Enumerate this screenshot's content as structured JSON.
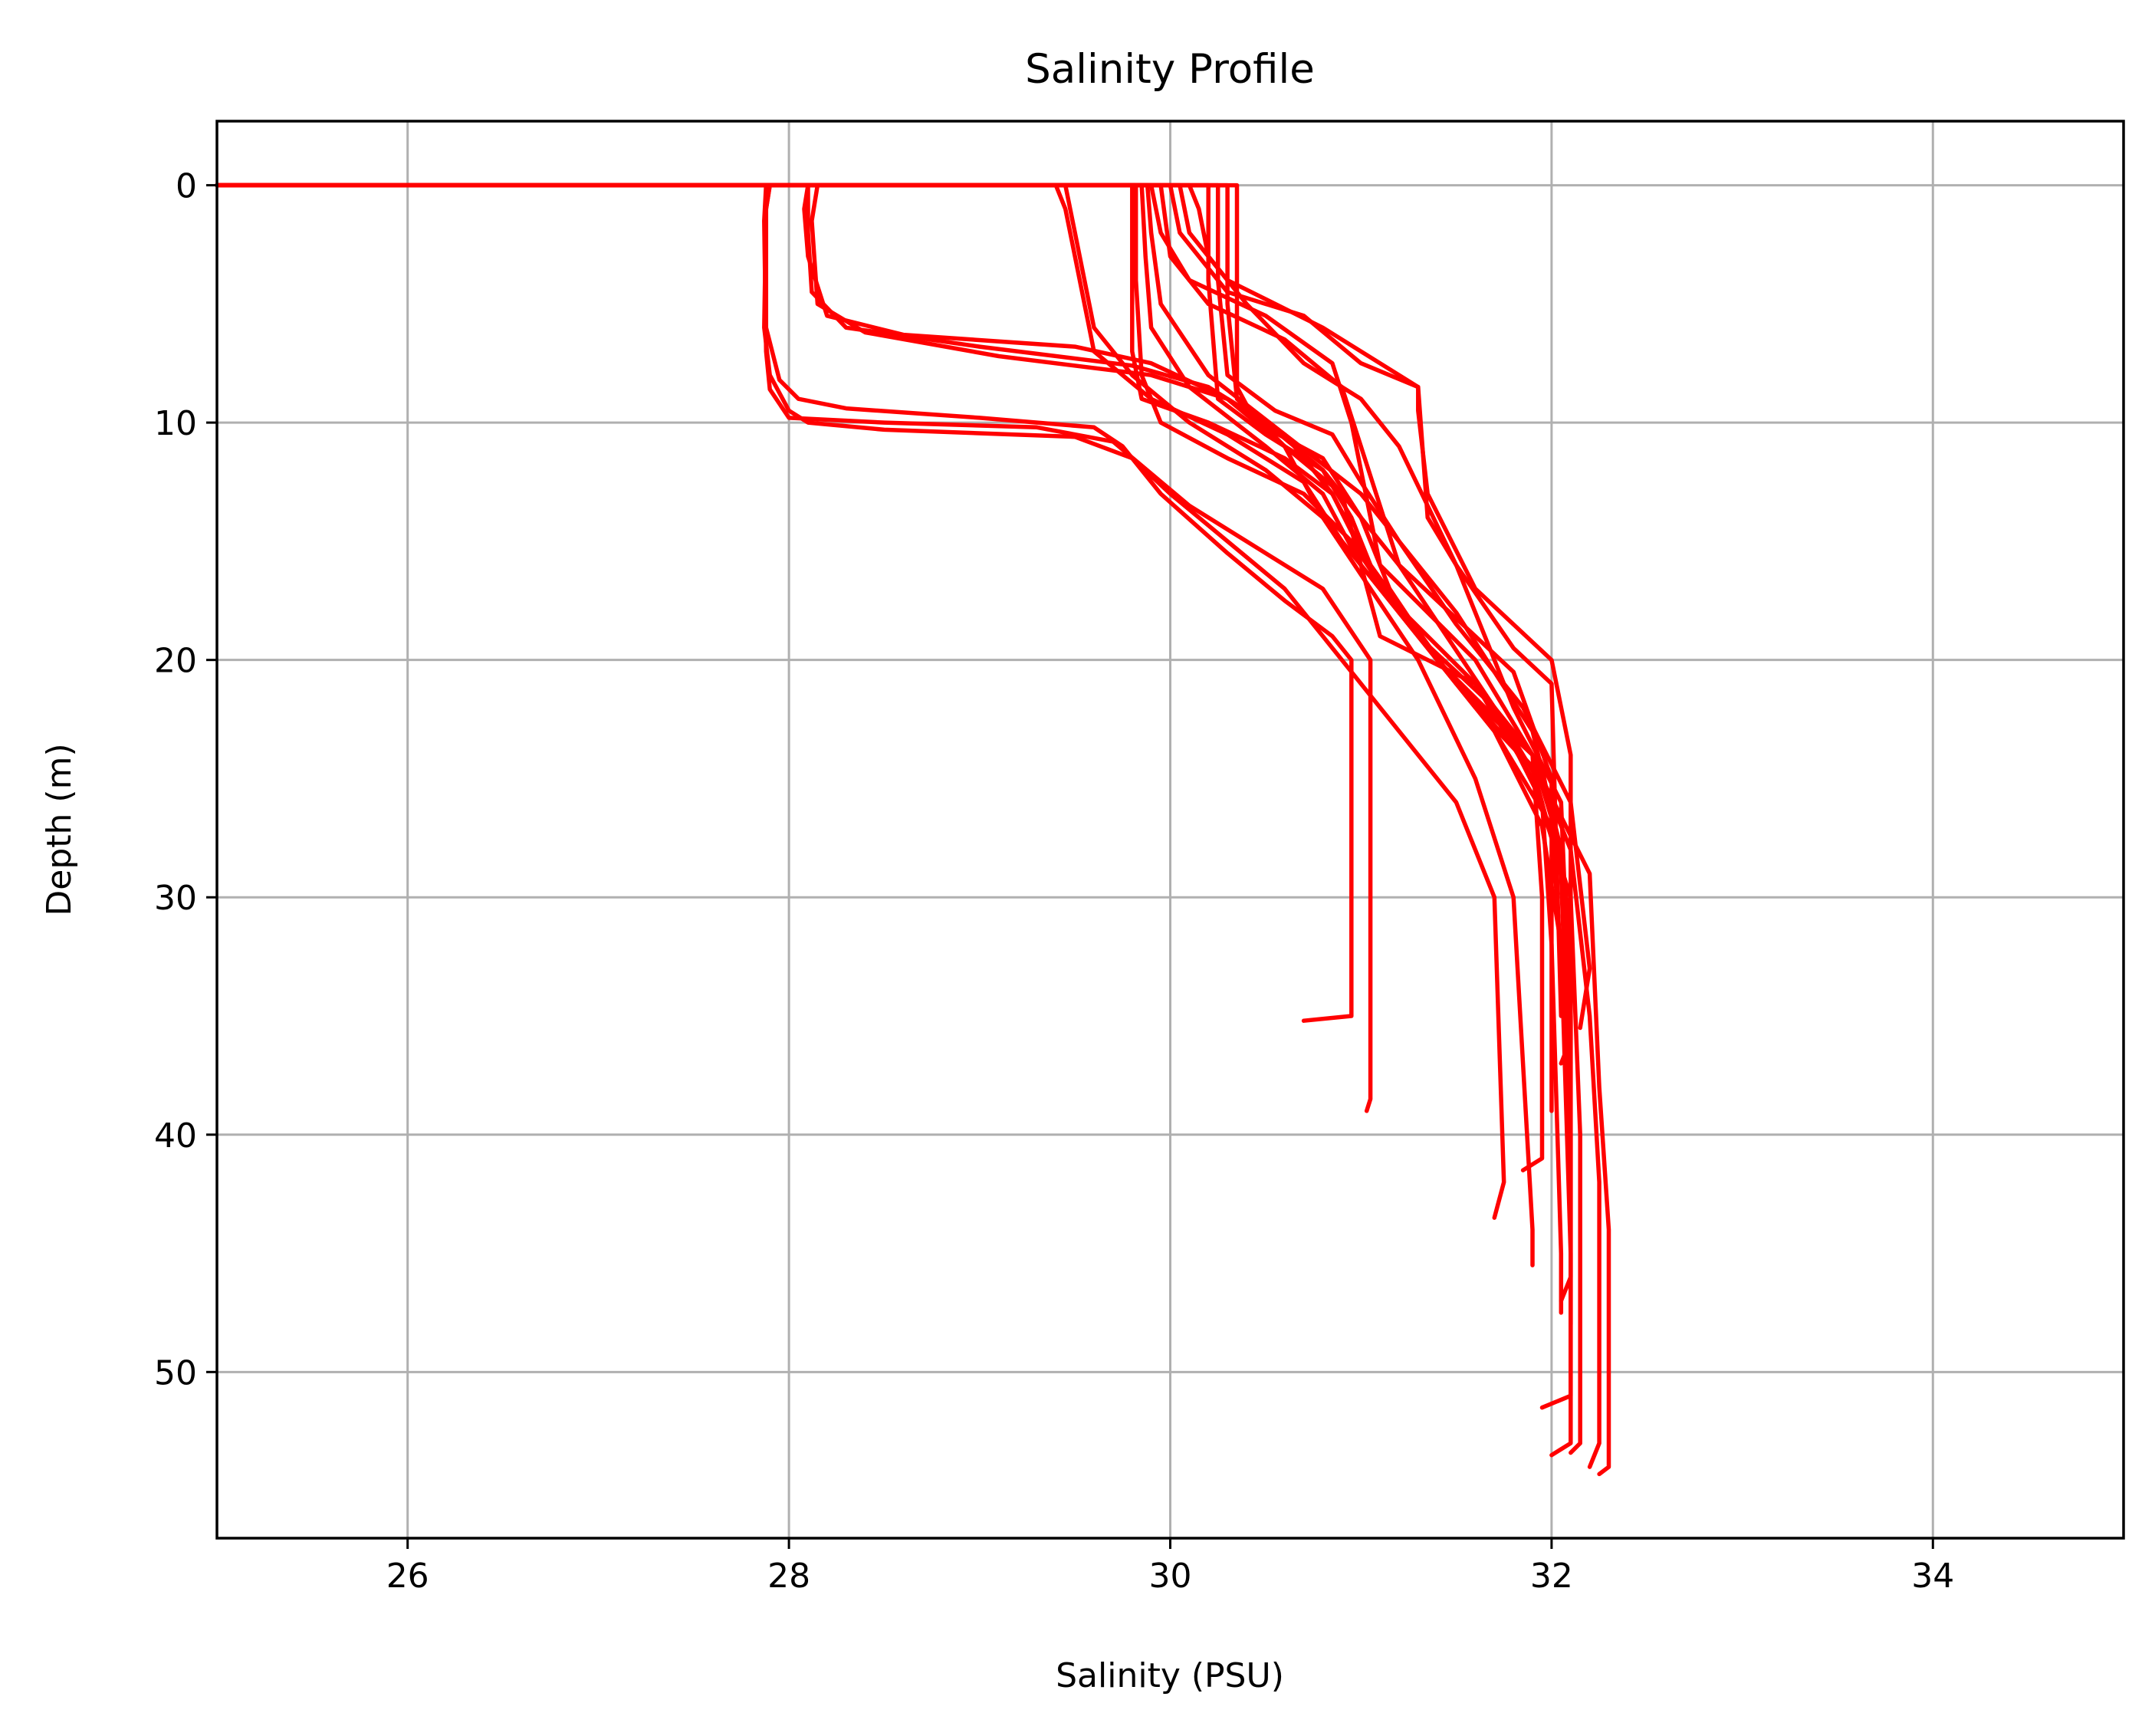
{
  "chart_data": {
    "type": "line",
    "title": "Salinity Profile",
    "xlabel": "Salinity (PSU)",
    "ylabel": "Depth (m)",
    "xlim": [
      25,
      35
    ],
    "ylim": [
      57,
      -2.7
    ],
    "y_inverted": true,
    "grid": true,
    "legend": "none",
    "x_ticks": [
      26,
      28,
      30,
      32,
      34
    ],
    "y_ticks": [
      0,
      10,
      20,
      30,
      40,
      50
    ],
    "line_color": "#ff0000",
    "series": [
      {
        "x": [
          25,
          27.9,
          27.88,
          27.87,
          27.9,
          28.0,
          28.1,
          28.5,
          29.5,
          29.8,
          30.0,
          30.3,
          30.6,
          30.8,
          31.5,
          31.7,
          31.75,
          31.7
        ],
        "y": [
          0,
          0,
          1,
          6,
          8,
          9.5,
          10,
          10.3,
          10.6,
          11.5,
          13,
          15,
          17,
          19,
          26,
          30,
          42,
          43.5
        ]
      },
      {
        "x": [
          25,
          27.9,
          27.88,
          27.88,
          27.95,
          28.05,
          28.3,
          29.0,
          29.6,
          29.75,
          29.95,
          30.3,
          30.6,
          30.85,
          30.95,
          30.95,
          30.7
        ],
        "y": [
          0,
          0,
          1,
          6,
          8.2,
          9.0,
          9.4,
          9.8,
          10.2,
          11.0,
          13,
          15.5,
          17.5,
          19,
          20,
          35,
          35.2
        ]
      },
      {
        "x": [
          25,
          27.88,
          27.87,
          27.88,
          27.9,
          28.0,
          28.5,
          29.3,
          29.7,
          30.1,
          30.5,
          30.8,
          31.05,
          31.05,
          31.03
        ],
        "y": [
          0,
          0,
          1.5,
          7,
          8.6,
          9.8,
          10.0,
          10.2,
          10.8,
          13.5,
          15.5,
          17,
          20,
          38.5,
          39.0
        ]
      },
      {
        "x": [
          25,
          28.1,
          28.08,
          28.1,
          28.2,
          28.6,
          29.5,
          29.9,
          30.3,
          30.6,
          30.8,
          31.3,
          31.6,
          31.8,
          31.9,
          31.9
        ],
        "y": [
          0,
          0,
          1,
          3,
          5.5,
          6.3,
          6.8,
          7.5,
          9.0,
          11,
          14,
          20,
          25,
          30,
          44,
          45.5
        ]
      },
      {
        "x": [
          25,
          28.1,
          28.1,
          28.12,
          28.3,
          29.0,
          29.8,
          30.2,
          30.5,
          30.8,
          31.2,
          31.7,
          31.95,
          32.0,
          32.05,
          32.05
        ],
        "y": [
          0,
          0,
          2,
          4.5,
          6.0,
          6.8,
          7.6,
          8.5,
          10.0,
          12,
          16,
          22,
          26,
          32,
          45,
          47.5
        ]
      },
      {
        "x": [
          25,
          28.15,
          28.12,
          28.15,
          28.4,
          29.1,
          29.9,
          30.3,
          30.6,
          31.0,
          31.5,
          31.9,
          32.05,
          32.1,
          32.1,
          31.95
        ],
        "y": [
          0,
          0,
          1.5,
          5,
          6.2,
          7.2,
          8.0,
          9.0,
          10.5,
          13,
          18,
          23,
          28,
          35,
          51,
          51.5
        ]
      },
      {
        "x": [
          25,
          29.4,
          29.45,
          29.5,
          29.55,
          29.6,
          29.9,
          30.3,
          30.7,
          30.9,
          31.3,
          31.7,
          31.95,
          32.05,
          32.1,
          32.1,
          32.0
        ],
        "y": [
          0,
          0,
          1,
          3,
          5,
          7,
          9,
          10.5,
          12.5,
          15,
          19,
          23,
          27,
          32,
          45,
          53,
          53.5
        ]
      },
      {
        "x": [
          25,
          29.45,
          29.5,
          29.55,
          29.6,
          29.8,
          30.1,
          30.5,
          30.8,
          31.1,
          31.6,
          31.9,
          32.1,
          32.15,
          32.15,
          32.1
        ],
        "y": [
          0,
          0,
          2,
          4,
          6,
          8,
          10,
          12,
          14,
          17,
          21,
          25,
          30,
          40,
          53,
          53.4
        ]
      },
      {
        "x": [
          25,
          29.8,
          29.8,
          29.8,
          29.85,
          30.2,
          30.6,
          30.85,
          31.05,
          31.5,
          31.9,
          32.1,
          32.2,
          32.25,
          32.25,
          32.2
        ],
        "y": [
          0,
          0,
          3,
          7,
          9,
          10,
          11.5,
          13,
          16,
          21,
          24,
          28,
          35,
          42,
          53,
          54
        ]
      },
      {
        "x": [
          25,
          29.82,
          29.82,
          29.85,
          29.95,
          30.3,
          30.7,
          30.95,
          31.2,
          31.6,
          31.95,
          32.2,
          32.25,
          32.3,
          32.3,
          32.25
        ],
        "y": [
          0,
          0,
          4,
          8,
          10,
          11.5,
          13,
          15,
          18,
          22,
          25,
          29,
          38,
          44,
          54,
          54.3
        ]
      },
      {
        "x": [
          25,
          29.85,
          29.87,
          29.9,
          30.1,
          30.5,
          30.8,
          31.0,
          31.3,
          31.7,
          32.0,
          32.1,
          32.1,
          32.05
        ],
        "y": [
          0,
          0,
          3,
          6,
          8.5,
          11,
          13,
          16,
          19,
          22,
          26,
          32,
          46,
          47
        ]
      },
      {
        "x": [
          25,
          29.88,
          29.9,
          29.95,
          30.2,
          30.6,
          30.85,
          31.1,
          31.5,
          31.9,
          32.05,
          32.1,
          32.1
        ],
        "y": [
          0,
          0,
          2,
          5,
          8,
          10.5,
          13,
          17,
          21,
          24.5,
          29,
          40,
          48
        ]
      },
      {
        "x": [
          25,
          29.9,
          29.95,
          30.1,
          30.5,
          30.85,
          30.95,
          31.1,
          31.6,
          31.9,
          31.95,
          31.95,
          31.85
        ],
        "y": [
          0,
          0,
          2,
          4,
          5.5,
          7.5,
          10,
          16,
          20,
          24,
          30,
          41,
          41.5
        ]
      },
      {
        "x": [
          25,
          29.95,
          30.0,
          30.2,
          30.6,
          30.9,
          31.0,
          31.2,
          31.8,
          32.0,
          32.0
        ],
        "y": [
          0,
          0,
          3,
          5,
          6.5,
          8.5,
          11,
          16,
          20.5,
          25,
          39
        ]
      },
      {
        "x": [
          25,
          30.0,
          30.05,
          30.3,
          30.7,
          31.0,
          31.3,
          31.35,
          31.5,
          31.8,
          32.0,
          32.05
        ],
        "y": [
          0,
          0,
          2,
          4.5,
          5.5,
          7.5,
          8.5,
          14,
          16,
          19.5,
          21,
          35
        ]
      },
      {
        "x": [
          25,
          30.05,
          30.1,
          30.3,
          30.8,
          31.3,
          31.3,
          31.35,
          31.6,
          32.0,
          32.1,
          32.1
        ],
        "y": [
          0,
          0,
          2,
          4,
          6,
          8.5,
          9.5,
          13,
          17,
          20,
          24,
          36
        ]
      },
      {
        "x": [
          25,
          30.1,
          30.15,
          30.2,
          30.4,
          30.7,
          31.0,
          31.2,
          31.5,
          31.8,
          32.05,
          32.1,
          32.05
        ],
        "y": [
          0,
          0,
          1,
          3,
          5,
          7.5,
          9,
          11,
          16,
          22,
          26,
          36,
          37
        ]
      },
      {
        "x": [
          25,
          30.2,
          30.2,
          30.25,
          30.5,
          30.8,
          30.95,
          31.1,
          31.4,
          31.7,
          32.0,
          32.1
        ],
        "y": [
          0,
          0,
          4,
          9,
          10.5,
          12,
          14,
          17,
          20,
          23,
          27,
          38
        ]
      },
      {
        "x": [
          25,
          30.35,
          30.35,
          30.35,
          30.45,
          30.8,
          31.0,
          31.15,
          31.4,
          31.9,
          32.05,
          32.1
        ],
        "y": [
          0,
          0,
          3,
          8.5,
          10,
          11.5,
          14,
          17,
          20,
          24,
          28,
          37
        ]
      },
      {
        "x": [
          25,
          30.25,
          30.25,
          30.3,
          30.55,
          30.85,
          31.0,
          31.2,
          31.5,
          31.85,
          32.1,
          32.2,
          32.15
        ],
        "y": [
          0,
          0,
          4,
          8,
          9.5,
          10.5,
          12.5,
          15,
          18.5,
          22,
          26,
          33,
          35.5
        ]
      },
      {
        "x": [
          25,
          30.3,
          30.3,
          30.35,
          30.6,
          30.9,
          31.0,
          31.1,
          31.6,
          31.95,
          32.1
        ],
        "y": [
          0,
          0,
          5,
          9,
          11,
          13,
          16,
          19,
          21,
          24.5,
          31
        ]
      }
    ]
  }
}
